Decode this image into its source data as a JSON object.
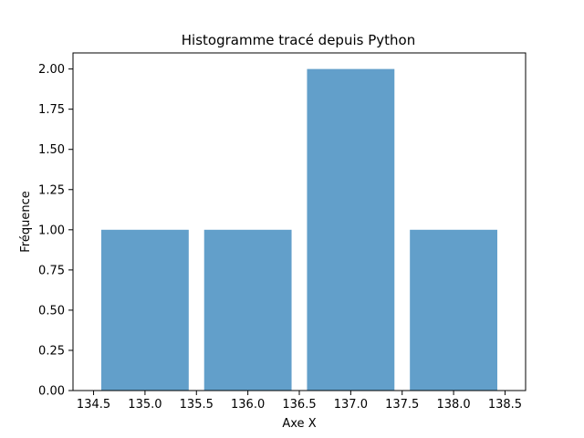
{
  "chart_data": {
    "type": "bar",
    "title": "Histogramme tracé depuis Python",
    "xlabel": "Axe X",
    "ylabel": "Fréquence",
    "bins": [
      {
        "left": 134.5,
        "right": 135.5,
        "value": 1
      },
      {
        "left": 135.5,
        "right": 136.5,
        "value": 1
      },
      {
        "left": 136.5,
        "right": 137.5,
        "value": 2
      },
      {
        "left": 137.5,
        "right": 138.5,
        "value": 1
      }
    ],
    "bar_width_fraction": 0.85,
    "xlim": [
      134.3,
      138.7
    ],
    "ylim": [
      0,
      2.1
    ],
    "xticks": [
      134.5,
      135.0,
      135.5,
      136.0,
      136.5,
      137.0,
      137.5,
      138.0,
      138.5
    ],
    "xtick_labels": [
      "134.5",
      "135.0",
      "135.5",
      "136.0",
      "136.5",
      "137.0",
      "137.5",
      "138.0",
      "138.5"
    ],
    "yticks": [
      0,
      0.25,
      0.5,
      0.75,
      1.0,
      1.25,
      1.5,
      1.75,
      2.0
    ],
    "ytick_labels": [
      "0.00",
      "0.25",
      "0.50",
      "0.75",
      "1.00",
      "1.25",
      "1.50",
      "1.75",
      "2.00"
    ],
    "bar_color": "#629fca",
    "grid": false,
    "legend": "none"
  }
}
